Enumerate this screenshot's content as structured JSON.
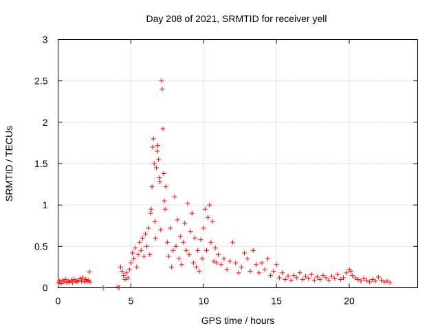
{
  "chart_data": {
    "type": "scatter",
    "title": "Day 208 of 2021, SRMTID for receiver yell",
    "xlabel": "GPS time / hours",
    "ylabel": "SRMTID / TECUs",
    "xlim": [
      0,
      24.7
    ],
    "ylim": [
      0,
      3
    ],
    "xticks": [
      0,
      5,
      10,
      15,
      20
    ],
    "yticks": [
      0,
      0.5,
      1,
      1.5,
      2,
      2.5,
      3
    ],
    "xtick_labels": [
      "0",
      "5",
      "10",
      "15",
      "20"
    ],
    "ytick_labels": [
      "0",
      "0.5",
      "1",
      "1.5",
      "2",
      "2.5",
      "3"
    ],
    "grid": true,
    "marker": "+",
    "color": "#ff0000",
    "series": [
      {
        "name": "SRMTID",
        "points": [
          [
            0.0,
            0.06
          ],
          [
            0.1,
            0.08
          ],
          [
            0.2,
            0.05
          ],
          [
            0.3,
            0.09
          ],
          [
            0.4,
            0.07
          ],
          [
            0.5,
            0.1
          ],
          [
            0.6,
            0.06
          ],
          [
            0.7,
            0.08
          ],
          [
            0.8,
            0.07
          ],
          [
            0.9,
            0.09
          ],
          [
            1.0,
            0.06
          ],
          [
            1.1,
            0.1
          ],
          [
            1.2,
            0.08
          ],
          [
            1.3,
            0.07
          ],
          [
            1.4,
            0.09
          ],
          [
            1.5,
            0.11
          ],
          [
            1.6,
            0.08
          ],
          [
            1.7,
            0.12
          ],
          [
            1.8,
            0.07
          ],
          [
            1.9,
            0.1
          ],
          [
            2.0,
            0.08
          ],
          [
            2.1,
            0.09
          ],
          [
            2.15,
            0.19
          ],
          [
            2.2,
            0.07
          ],
          [
            3.1,
            0.0
          ],
          [
            4.1,
            0.01
          ],
          [
            4.2,
            0.0
          ],
          [
            4.3,
            0.25
          ],
          [
            4.4,
            0.2
          ],
          [
            4.5,
            0.15
          ],
          [
            4.6,
            0.1
          ],
          [
            4.7,
            0.18
          ],
          [
            4.8,
            0.12
          ],
          [
            4.9,
            0.22
          ],
          [
            5.0,
            0.3
          ],
          [
            5.1,
            0.42
          ],
          [
            5.2,
            0.35
          ],
          [
            5.3,
            0.48
          ],
          [
            5.4,
            0.25
          ],
          [
            5.5,
            0.4
          ],
          [
            5.6,
            0.55
          ],
          [
            5.7,
            0.45
          ],
          [
            5.8,
            0.6
          ],
          [
            5.9,
            0.38
          ],
          [
            6.0,
            0.65
          ],
          [
            6.1,
            0.5
          ],
          [
            6.2,
            0.72
          ],
          [
            6.3,
            0.4
          ],
          [
            6.35,
            0.9
          ],
          [
            6.4,
            0.95
          ],
          [
            6.45,
            1.22
          ],
          [
            6.5,
            1.7
          ],
          [
            6.55,
            1.8
          ],
          [
            6.6,
            1.5
          ],
          [
            6.65,
            0.8
          ],
          [
            6.7,
            0.6
          ],
          [
            6.75,
            1.45
          ],
          [
            6.8,
            1.65
          ],
          [
            6.85,
            1.72
          ],
          [
            6.9,
            1.55
          ],
          [
            6.95,
            1.33
          ],
          [
            7.0,
            1.28
          ],
          [
            7.05,
            0.7
          ],
          [
            7.1,
            2.5
          ],
          [
            7.15,
            2.4
          ],
          [
            7.2,
            1.92
          ],
          [
            7.25,
            1.38
          ],
          [
            7.3,
            1.05
          ],
          [
            7.35,
            0.95
          ],
          [
            7.4,
            1.22
          ],
          [
            7.5,
            0.55
          ],
          [
            7.6,
            0.38
          ],
          [
            7.7,
            0.72
          ],
          [
            7.8,
            0.25
          ],
          [
            7.9,
            0.45
          ],
          [
            8.0,
            1.1
          ],
          [
            8.1,
            0.5
          ],
          [
            8.2,
            0.82
          ],
          [
            8.3,
            0.35
          ],
          [
            8.4,
            0.62
          ],
          [
            8.5,
            0.28
          ],
          [
            8.6,
            0.55
          ],
          [
            8.7,
            0.78
          ],
          [
            8.8,
            0.45
          ],
          [
            8.9,
            1.02
          ],
          [
            9.0,
            0.4
          ],
          [
            9.1,
            0.68
          ],
          [
            9.2,
            0.9
          ],
          [
            9.3,
            0.3
          ],
          [
            9.4,
            0.6
          ],
          [
            9.5,
            0.25
          ],
          [
            9.6,
            0.45
          ],
          [
            9.7,
            0.2
          ],
          [
            9.8,
            0.58
          ],
          [
            9.9,
            0.35
          ],
          [
            10.0,
            0.72
          ],
          [
            10.1,
            0.95
          ],
          [
            10.2,
            0.45
          ],
          [
            10.3,
            0.85
          ],
          [
            10.4,
            1.0
          ],
          [
            10.5,
            0.55
          ],
          [
            10.6,
            0.8
          ],
          [
            10.7,
            0.32
          ],
          [
            10.8,
            0.48
          ],
          [
            10.9,
            0.3
          ],
          [
            11.0,
            0.4
          ],
          [
            11.2,
            0.28
          ],
          [
            11.4,
            0.35
          ],
          [
            11.6,
            0.22
          ],
          [
            11.8,
            0.32
          ],
          [
            12.0,
            0.55
          ],
          [
            12.2,
            0.3
          ],
          [
            12.4,
            0.18
          ],
          [
            12.6,
            0.25
          ],
          [
            12.8,
            0.42
          ],
          [
            13.0,
            0.35
          ],
          [
            13.2,
            0.2
          ],
          [
            13.4,
            0.45
          ],
          [
            13.6,
            0.28
          ],
          [
            13.8,
            0.18
          ],
          [
            14.0,
            0.3
          ],
          [
            14.2,
            0.22
          ],
          [
            14.4,
            0.35
          ],
          [
            14.6,
            0.15
          ],
          [
            14.8,
            0.2
          ],
          [
            15.0,
            0.28
          ],
          [
            15.2,
            0.12
          ],
          [
            15.4,
            0.18
          ],
          [
            15.6,
            0.1
          ],
          [
            15.8,
            0.14
          ],
          [
            16.0,
            0.09
          ],
          [
            16.2,
            0.15
          ],
          [
            16.4,
            0.12
          ],
          [
            16.6,
            0.18
          ],
          [
            16.8,
            0.1
          ],
          [
            17.0,
            0.14
          ],
          [
            17.2,
            0.11
          ],
          [
            17.4,
            0.16
          ],
          [
            17.6,
            0.09
          ],
          [
            17.8,
            0.13
          ],
          [
            18.0,
            0.1
          ],
          [
            18.2,
            0.15
          ],
          [
            18.4,
            0.12
          ],
          [
            18.6,
            0.09
          ],
          [
            18.8,
            0.14
          ],
          [
            19.0,
            0.11
          ],
          [
            19.2,
            0.16
          ],
          [
            19.4,
            0.1
          ],
          [
            19.6,
            0.12
          ],
          [
            19.8,
            0.18
          ],
          [
            20.0,
            0.22
          ],
          [
            20.1,
            0.2
          ],
          [
            20.2,
            0.15
          ],
          [
            20.4,
            0.12
          ],
          [
            20.6,
            0.1
          ],
          [
            20.8,
            0.08
          ],
          [
            21.0,
            0.11
          ],
          [
            21.2,
            0.09
          ],
          [
            21.4,
            0.07
          ],
          [
            21.6,
            0.1
          ],
          [
            21.8,
            0.08
          ],
          [
            22.0,
            0.13
          ],
          [
            22.2,
            0.09
          ],
          [
            22.4,
            0.07
          ],
          [
            22.6,
            0.08
          ],
          [
            22.8,
            0.06
          ]
        ]
      }
    ]
  }
}
